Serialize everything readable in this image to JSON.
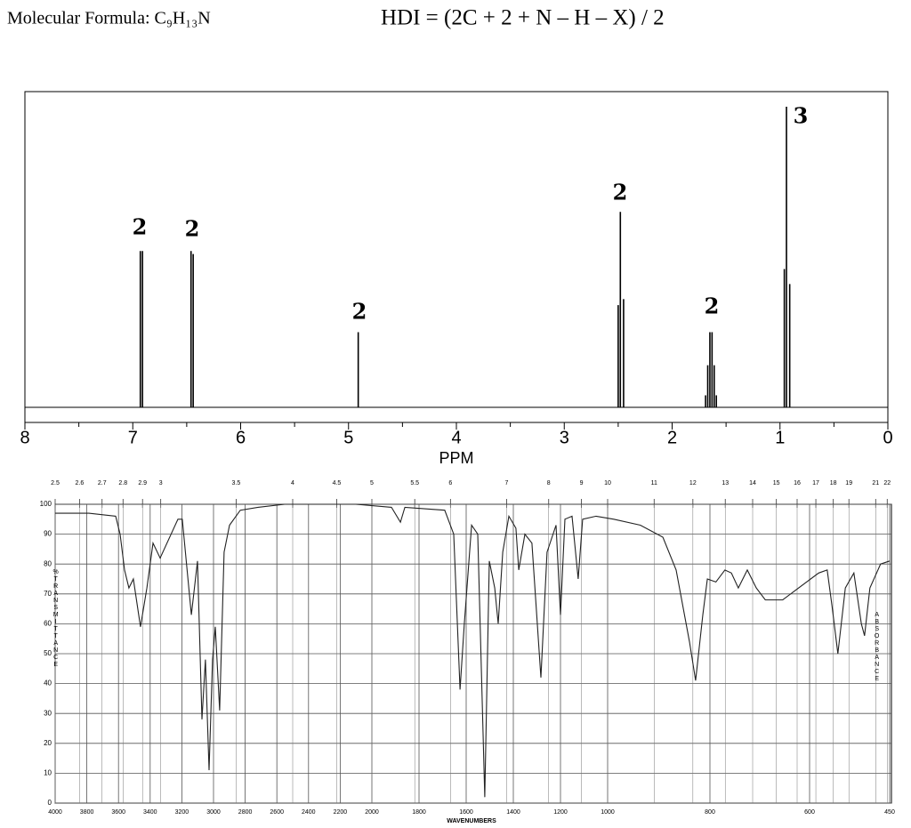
{
  "header": {
    "formula": "Molecular Formula: C₉H₁₃N",
    "hdi": "HDI = (2C + 2 + N – H – X) / 2"
  },
  "chart_data": [
    {
      "type": "stick",
      "x": [
        6.93,
        6.91,
        6.46,
        6.44,
        4.91,
        2.5,
        2.48,
        2.45,
        1.69,
        1.67,
        1.65,
        1.63,
        1.61,
        1.59,
        0.96,
        0.94,
        0.91
      ],
      "values": [
        52,
        52,
        52,
        51,
        25,
        34,
        65,
        36,
        4,
        14,
        25,
        25,
        14,
        4,
        46,
        100,
        41
      ],
      "xlim": [
        8,
        0
      ],
      "xticks": [
        8,
        7,
        6,
        5,
        4,
        3,
        2,
        1,
        0
      ],
      "xlabel": "PPM",
      "ylim": [
        0,
        100
      ],
      "annotations": [
        "2",
        "2",
        "2",
        "2",
        "2",
        "3"
      ],
      "color": "#000000",
      "annotation_color": "#e33b2e"
    },
    {
      "type": "line",
      "x": [
        4000,
        3787,
        3618,
        3590,
        3562,
        3534,
        3506,
        3461,
        3421,
        3382,
        3337,
        3225,
        3197,
        3140,
        3101,
        3073,
        3051,
        3028,
        3006,
        2989,
        2961,
        2933,
        2899,
        2831,
        2719,
        2551,
        2382,
        2101,
        1917,
        1879,
        1860,
        1691,
        1653,
        1626,
        1608,
        1577,
        1551,
        1521,
        1502,
        1479,
        1464,
        1445,
        1419,
        1389,
        1377,
        1351,
        1321,
        1283,
        1257,
        1219,
        1200,
        1181,
        1151,
        1125,
        1106,
        1049,
        988,
        936,
        892,
        866,
        840,
        828,
        814,
        805,
        788,
        770,
        757,
        743,
        725,
        707,
        689,
        654,
        583,
        567,
        558,
        547,
        533,
        517,
        503,
        497,
        487,
        467,
        450
      ],
      "values": [
        97,
        97,
        96,
        90,
        78,
        72,
        75,
        59,
        72,
        87,
        82,
        95,
        95,
        63,
        81,
        28,
        48,
        11,
        48,
        59,
        31,
        84,
        93,
        98,
        99,
        100,
        100,
        100,
        99,
        94,
        99,
        98,
        90,
        38,
        60,
        93,
        90,
        2,
        81,
        72,
        60,
        84,
        96,
        92,
        78,
        90,
        87,
        42,
        84,
        93,
        63,
        95,
        96,
        75,
        95,
        96,
        95,
        93,
        89,
        78,
        54,
        41,
        63,
        75,
        74,
        78,
        77,
        72,
        78,
        72,
        68,
        68,
        77,
        78,
        66,
        50,
        72,
        77,
        60,
        56,
        72,
        80,
        81
      ],
      "xlim": [
        4000,
        450
      ],
      "xticks": [
        4000,
        3800,
        3600,
        3400,
        3200,
        3000,
        2800,
        2600,
        2400,
        2200,
        2000,
        1800,
        1600,
        1400,
        1200,
        1000,
        800,
        600,
        450
      ],
      "x2ticks": [
        2.5,
        2.6,
        2.7,
        2.8,
        2.9,
        3,
        3.5,
        4,
        4.5,
        5,
        5.5,
        6,
        7,
        8,
        9,
        10,
        11,
        12,
        13,
        14,
        15,
        16,
        17,
        18,
        19,
        21,
        22
      ],
      "ylim": [
        0,
        100
      ],
      "yticks": [
        0,
        10,
        20,
        30,
        40,
        50,
        60,
        70,
        80,
        90,
        100
      ],
      "xlabel": "WAVENUMBERS",
      "ylabel": "%TRANSMITTANCE",
      "y2label": "ABSORBANCE",
      "grid": true,
      "color": "#222222"
    }
  ]
}
